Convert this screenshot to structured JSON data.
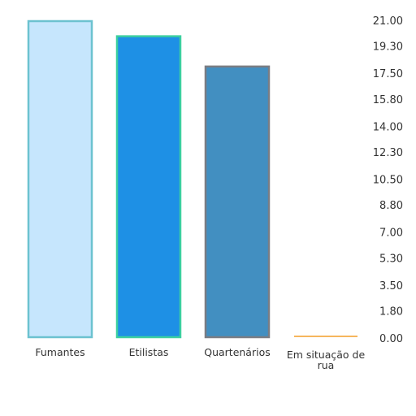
{
  "chart_data": {
    "type": "bar",
    "categories": [
      "Fumantes",
      "Etilistas",
      "Quartenários",
      "Em situação de rua"
    ],
    "category_label_lines": [
      [
        "Fumantes"
      ],
      [
        "Etilistas"
      ],
      [
        "Quartenários"
      ],
      [
        "Em situação de",
        "rua"
      ]
    ],
    "values": [
      21.0,
      20.0,
      18.0,
      0.1
    ],
    "colors": [
      {
        "fill": "#c6e6fd",
        "stroke": "#6cc2d0"
      },
      {
        "fill": "#1e90e5",
        "stroke": "#3ccfa0"
      },
      {
        "fill": "#428fc1",
        "stroke": "#7a7d84"
      },
      {
        "fill": "#f6b65d",
        "stroke": "#f6b65d"
      }
    ],
    "yaxis": {
      "position": "right",
      "ticks": [
        "0.00",
        "1.80",
        "3.50",
        "5.30",
        "7.00",
        "8.80",
        "10.50",
        "12.30",
        "14.00",
        "15.80",
        "17.50",
        "19.30",
        "21.00"
      ]
    },
    "ylim": [
      0,
      21
    ],
    "title": "",
    "xlabel": "",
    "ylabel": "",
    "grid": false,
    "legend": "none"
  }
}
